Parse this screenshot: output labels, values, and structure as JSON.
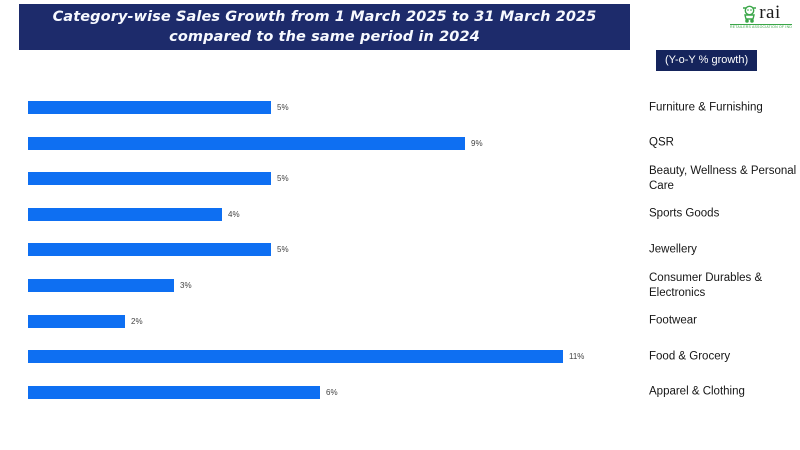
{
  "header": {
    "title": "Category-wise Sales Growth from 1 March 2025 to 31 March 2025 compared to the same period in 2024",
    "badge": "(Y-o-Y % growth)",
    "logo": {
      "text": "rai",
      "tagline": "Retailers Association of India"
    }
  },
  "colors": {
    "banner_bg": "#1d2b6b",
    "badge_bg": "#15245c",
    "bar_fill": "#0e6ff2",
    "logo_green": "#3aa648",
    "background": "#ffffff"
  },
  "chart_data": {
    "type": "bar",
    "orientation": "horizontal",
    "title": "Category-wise Sales Growth from 1 March 2025 to 31 March 2025 compared to the same period in 2024",
    "subtitle": "(Y-o-Y % growth)",
    "unit": "%",
    "xlim": [
      0,
      12
    ],
    "grid": false,
    "legend_position": "none",
    "categories": [
      "Furniture &  Furnishing",
      "QSR",
      "Beauty, Wellness & Personal Care",
      "Sports Goods",
      "Jewellery",
      "Consumer Durables & Electronics",
      "Footwear",
      "Food & Grocery",
      "Apparel & Clothing"
    ],
    "values": [
      5,
      9,
      5,
      4,
      5,
      3,
      2,
      11,
      6
    ],
    "value_labels": [
      "5%",
      "9%",
      "5%",
      "4%",
      "5%",
      "3%",
      "2%",
      "11%",
      "6%"
    ]
  }
}
